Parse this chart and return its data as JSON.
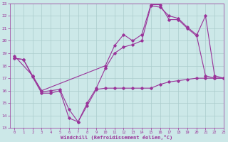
{
  "xlabel": "Windchill (Refroidissement éolien,°C)",
  "xlim": [
    -0.5,
    23
  ],
  "ylim": [
    13,
    23
  ],
  "xticks": [
    0,
    1,
    2,
    3,
    4,
    5,
    6,
    7,
    8,
    9,
    10,
    11,
    12,
    13,
    14,
    15,
    16,
    17,
    18,
    19,
    20,
    21,
    22,
    23
  ],
  "yticks": [
    13,
    14,
    15,
    16,
    17,
    18,
    19,
    20,
    21,
    22,
    23
  ],
  "bg_color": "#cce8e8",
  "line_color": "#993399",
  "grid_color": "#aacccc",
  "line1_x": [
    0,
    1,
    2,
    3,
    4,
    5,
    6,
    7,
    8,
    9,
    10,
    11,
    12,
    13,
    14,
    15,
    16,
    17,
    18,
    19,
    20,
    21,
    22,
    23
  ],
  "line1_y": [
    18.6,
    18.5,
    17.1,
    15.8,
    15.8,
    16.0,
    13.8,
    13.5,
    14.8,
    16.1,
    16.2,
    16.2,
    16.2,
    16.2,
    16.2,
    16.2,
    16.5,
    16.7,
    16.8,
    16.9,
    17.0,
    17.0,
    17.0,
    17.0
  ],
  "line2_x": [
    0,
    1,
    2,
    3,
    4,
    5,
    6,
    7,
    8,
    9,
    10,
    11,
    12,
    13,
    14,
    15,
    16,
    17,
    18,
    19,
    20,
    21,
    22,
    23
  ],
  "line2_y": [
    18.6,
    18.5,
    17.2,
    15.9,
    16.0,
    16.1,
    14.5,
    13.5,
    15.0,
    16.2,
    17.8,
    19.0,
    19.5,
    19.7,
    20.0,
    22.8,
    22.7,
    22.0,
    21.8,
    21.1,
    20.5,
    17.2,
    17.0,
    17.0
  ],
  "line3_x": [
    0,
    2,
    3,
    10,
    11,
    12,
    13,
    14,
    15,
    16,
    17,
    18,
    19,
    20,
    21,
    22,
    23
  ],
  "line3_y": [
    18.8,
    17.2,
    16.0,
    18.0,
    19.6,
    20.5,
    20.0,
    20.5,
    22.9,
    22.9,
    21.7,
    21.7,
    21.0,
    20.4,
    22.0,
    17.2,
    17.0
  ]
}
